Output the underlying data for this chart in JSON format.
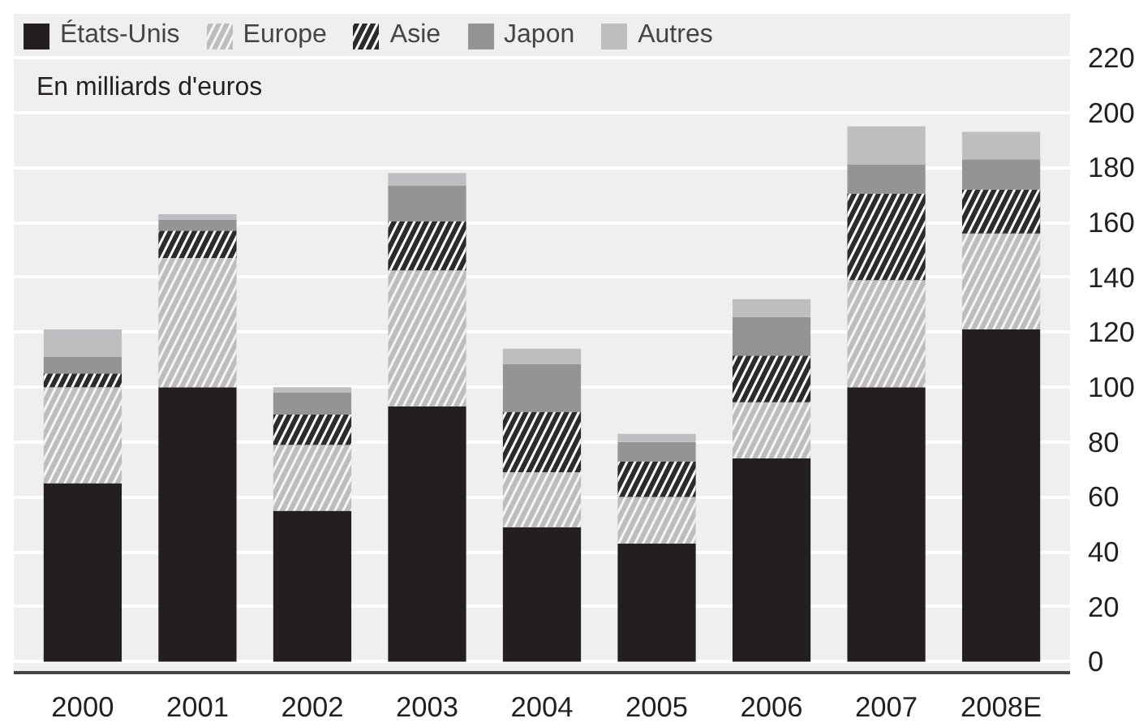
{
  "chart_data": {
    "type": "bar",
    "stacked": true,
    "subtitle": "En milliards d'euros",
    "categories": [
      "2000",
      "2001",
      "2002",
      "2003",
      "2004",
      "2005",
      "2006",
      "2007",
      "2008E"
    ],
    "series": [
      {
        "name": "États-Unis",
        "color": "#231f20",
        "values": [
          65,
          100,
          55,
          93,
          49,
          43,
          74,
          100,
          121
        ]
      },
      {
        "name": "Europe",
        "color": "#bdbdbd",
        "values": [
          35,
          47,
          24,
          49.5,
          20,
          17,
          20.5,
          39,
          35
        ]
      },
      {
        "name": "Asie",
        "color": "#2b2b2e",
        "values": [
          5,
          10,
          11,
          18,
          22,
          13,
          17,
          31.5,
          16
        ]
      },
      {
        "name": "Japon",
        "color": "#949496",
        "values": [
          6,
          4,
          8,
          13,
          17.5,
          7,
          14,
          10.5,
          11
        ]
      },
      {
        "name": "Autres",
        "color": "#bdbec0",
        "values": [
          10,
          2,
          2,
          4.5,
          5.5,
          3,
          6.5,
          14,
          10
        ]
      }
    ],
    "ylim": [
      -4,
      236
    ],
    "yticks": [
      0,
      20,
      40,
      60,
      80,
      100,
      120,
      140,
      160,
      180,
      200,
      220
    ],
    "grid": "y",
    "legend": "top left"
  }
}
